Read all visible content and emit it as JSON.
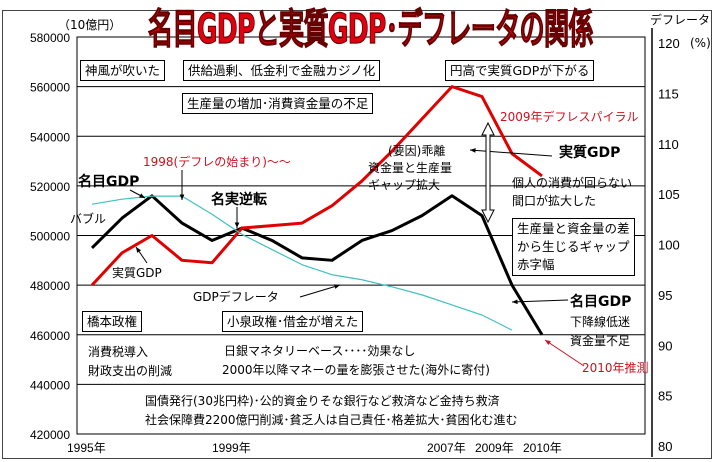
{
  "title": "名目GDPと実質GDP･デフレータの関係",
  "chart_data": {
    "type": "line",
    "title": "名目GDPと実質GDP･デフレータの関係",
    "left_axis_unit": "（10億円）",
    "right_axis_title": "デフレータ",
    "right_axis_unit": "(%)",
    "ylim": [
      420000,
      580000
    ],
    "y2lim": [
      80,
      120
    ],
    "yticks": [
      "580000",
      "560000",
      "540000",
      "520000",
      "500000",
      "480000",
      "460000",
      "440000",
      "420000"
    ],
    "y2ticks": [
      "120",
      "115",
      "110",
      "105",
      "100",
      "95",
      "90",
      "85",
      "80"
    ],
    "xtick_labels": [
      "1995年",
      "1999年",
      "2007年",
      "2009年",
      "2010年"
    ],
    "x": [
      1995,
      1996,
      1997,
      1998,
      1999,
      2000,
      2001,
      2002,
      2003,
      2004,
      2005,
      2006,
      2007,
      2008,
      2009,
      2010
    ],
    "series": [
      {
        "name": "名目GDP",
        "axis": "left",
        "color": "#000000",
        "values": [
          495000,
          507000,
          516000,
          505000,
          498000,
          503000,
          498000,
          491000,
          490000,
          498000,
          502000,
          508000,
          516000,
          508000,
          480000,
          460000
        ]
      },
      {
        "name": "実質GDP",
        "axis": "left",
        "color": "#e00000",
        "values": [
          480000,
          493000,
          500000,
          490000,
          489000,
          503000,
          504000,
          505000,
          512000,
          522000,
          534000,
          547000,
          560000,
          556000,
          533000,
          524000
        ]
      },
      {
        "name": "GDPデフレータ",
        "axis": "right",
        "color": "#40c0c0",
        "values": [
          104,
          104.5,
          104.8,
          104.8,
          103,
          101,
          99.5,
          98,
          97,
          96.5,
          95.8,
          95,
          94,
          93,
          91.5,
          null
        ]
      }
    ]
  },
  "boxes": [
    "神風が吹いた",
    "供給過剰、低金利で金融カジノ化",
    "円高で実質GDPが下がる",
    "生産量の増加･消費資金量の不足",
    "橋本政権",
    "小泉政権･借金が増えた"
  ],
  "gap_box": [
    "生産量と資金量の差",
    "から生じるギャップ",
    "赤字幅"
  ],
  "labels": {
    "nominal_left": "名目GDP",
    "bubble": "バブル",
    "deflation_start": "1998(デフレの始まり)～～",
    "reversal": "名実逆転",
    "real_left": "実質GDP",
    "deflator": "GDPデフレータ",
    "spiral": "2009年デフレスパイラル",
    "factor1": "(要因)乖離",
    "factor2": "資金量と生産量",
    "factor3": "ギャップ拡大",
    "real_right": "実質GDP",
    "consume1": "個人の消費が回らない",
    "consume2": "間口が拡大した",
    "nominal_right": "名目GDP",
    "down1": "下降線低迷",
    "down2": "資金量不足",
    "estimate": "2010年推測",
    "tax1": "消費税導入",
    "tax2": "財政支出の削減",
    "boj1": "日銀マネタリーベース････効果なし",
    "boj2": "2000年以降マネーの量を膨張させた(海外に寄付)",
    "bond1": "国債発行(30兆円枠)･公的資金りそな銀行など救済など金持ち救済",
    "bond2": "社会保障費2200億円削減･貧乏人は自己責任･格差拡大･貧困化む進む"
  }
}
